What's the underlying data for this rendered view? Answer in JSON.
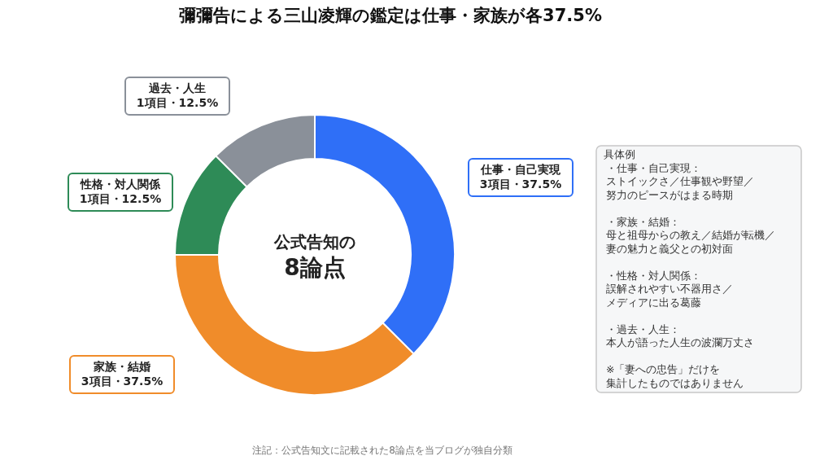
{
  "chart_data": {
    "type": "donut",
    "title": "彌彌告による三山凌輝の鑑定は仕事・家族が各37.5%",
    "categories": [
      "仕事・自己実現",
      "家族・結婚",
      "性格・対人関係",
      "過去・人生"
    ],
    "values": [
      37.5,
      37.5,
      12.5,
      12.5
    ],
    "value_labels": [
      "3項目・37.5%",
      "3項目・37.5%",
      "1項目・12.5%",
      "1項目・12.5%"
    ],
    "colors": [
      "#2f6ff7",
      "#f08c2a",
      "#2e8b57",
      "#8a9099"
    ],
    "annotations": [
      "公式告知の",
      "8論点",
      "具体例",
      "・仕事・自己実現：",
      "ストイックさ／仕事観や野望／",
      "努力のピースがはまる時期",
      "・家族・結婚：",
      "母と祖母からの教え／結婚が転機／",
      "妻の魅力と義父との初対面",
      "・性格・対人関係：",
      "誤解されやすい不器用さ／",
      "メディアに出る葛藤",
      "・過去・人生：",
      "本人が語った人生の波瀾万丈さ",
      "※「妻への忠告」だけを",
      "集計したものではありません",
      "注記：公式告知文に記載された8論点を当ブログが独自分類"
    ]
  }
}
